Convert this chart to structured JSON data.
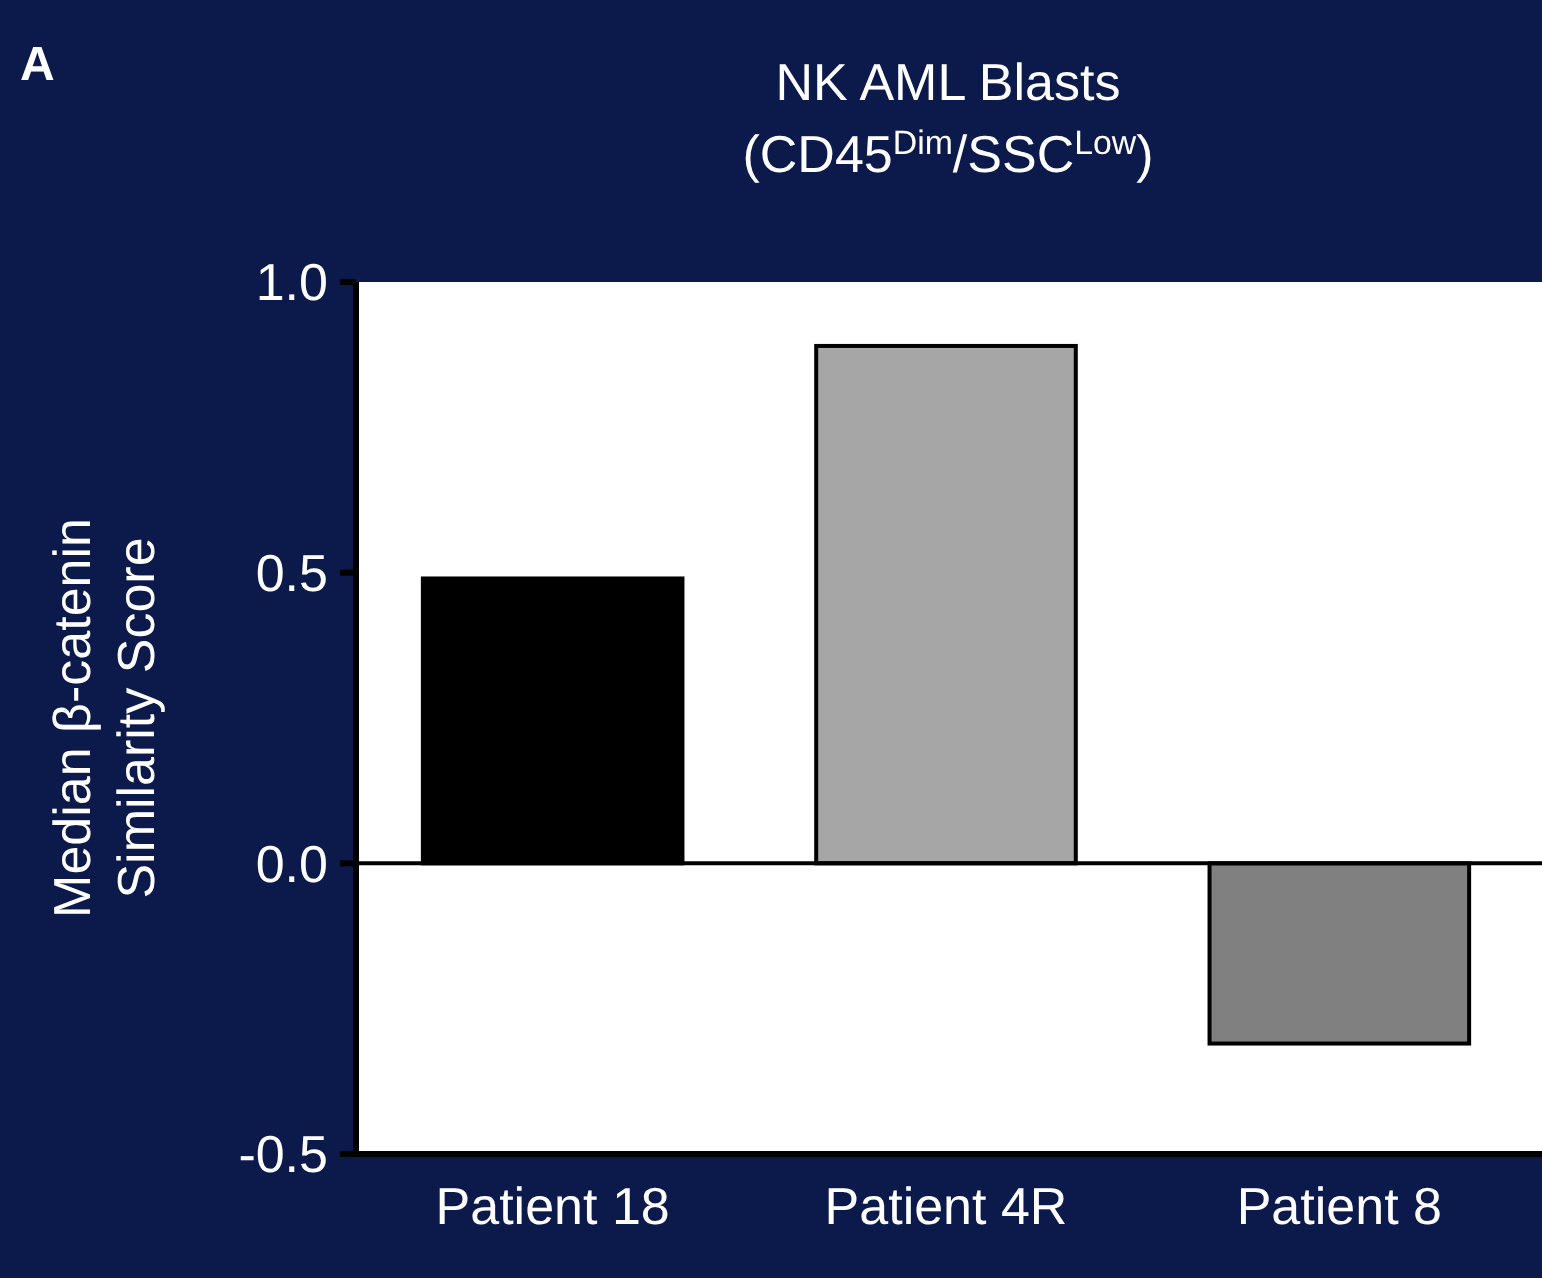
{
  "chart_data": {
    "type": "bar",
    "title": "NK AML Blasts",
    "subtitle": "(CD45$^{Dim}$/SSC$^{Low}$)",
    "ylabel": "Median β-catenin\nSimilarity Score",
    "annotations": [
      "A"
    ],
    "categories": [
      "Patient 18",
      "Patient 4R",
      "Patient 8"
    ],
    "values": [
      0.49,
      0.89,
      -0.31
    ],
    "colors": [
      "#000000",
      "#a6a6a6",
      "#808080"
    ],
    "ylim": [
      -0.5,
      1.0
    ],
    "yticks": [
      {
        "value": -0.5,
        "label": "-0.5"
      },
      {
        "value": 0,
        "label": "0.0"
      },
      {
        "value": 0.5,
        "label": "0.5"
      },
      {
        "value": 1,
        "label": "1.0"
      }
    ]
  }
}
